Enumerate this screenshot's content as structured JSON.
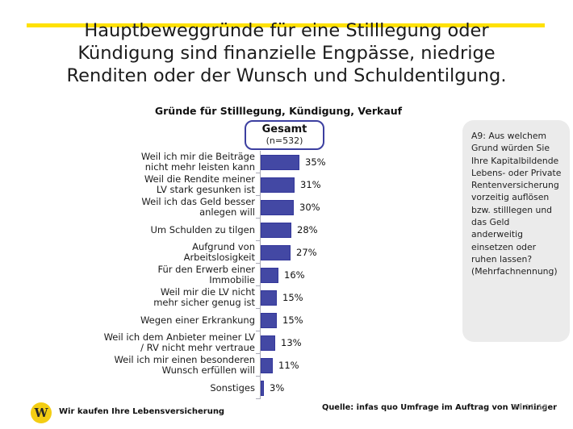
{
  "page": {
    "title_lines": [
      "Hauptbeweggründe für eine Stilllegung oder",
      "Kündigung sind finanzielle Engpässe, niedrige",
      "Renditen oder der Wunsch und Schuldentilgung."
    ]
  },
  "chart_data": {
    "type": "bar",
    "orientation": "horizontal",
    "title": "Gründe für Stilllegung, Kündigung, Verkauf",
    "group": {
      "label": "Gesamt",
      "sublabel": "(n=532)"
    },
    "unit": "%",
    "categories": [
      "Weil ich mir die Beiträge\nnicht mehr leisten kann",
      "Weil die Rendite meiner\nLV stark gesunken ist",
      "Weil ich das Geld besser\nanlegen will",
      "Um Schulden zu tilgen",
      "Aufgrund von\nArbeitslosigkeit",
      "Für den Erwerb einer\nImmobilie",
      "Weil mir die LV nicht\nmehr sicher genug ist",
      "Wegen einer Erkrankung",
      "Weil ich dem Anbieter meiner LV\n/ RV nicht mehr vertraue",
      "Weil ich mir einen besonderen\nWunsch erfüllen will",
      "Sonstiges"
    ],
    "values": [
      35,
      31,
      30,
      28,
      27,
      16,
      15,
      15,
      13,
      11,
      3
    ],
    "value_labels": [
      "35%",
      "31%",
      "30%",
      "28%",
      "27%",
      "16%",
      "15%",
      "15%",
      "13%",
      "11%",
      "3%"
    ],
    "xlim": [
      0,
      40
    ],
    "grid": false,
    "legend_position": "none",
    "bar_color": "#4348a4"
  },
  "note_box": {
    "text": "A9: Aus welchem Grund würden Sie Ihre Kapitalbildende Lebens- oder Private Rentenversicherung vorzeitig auflösen bzw. stilllegen und das Geld anderweitig einsetzen oder ruhen lassen? (Mehrfachnennung)"
  },
  "footer": {
    "logo_letter": "W",
    "brand": "Wir kaufen Ihre Lebensversicherung",
    "source": "Quelle: infas quo Umfrage im Auftrag von Winninger",
    "date": "14.11.18"
  },
  "colors": {
    "accent_yellow": "#ffe104",
    "bar": "#4348a4",
    "bar_border": "#33379a",
    "gesamt_border": "#3c3fa0",
    "note_bg": "#ebebeb",
    "logo_yellow": "#f3cd13",
    "date_gray": "#a2a2a2"
  }
}
